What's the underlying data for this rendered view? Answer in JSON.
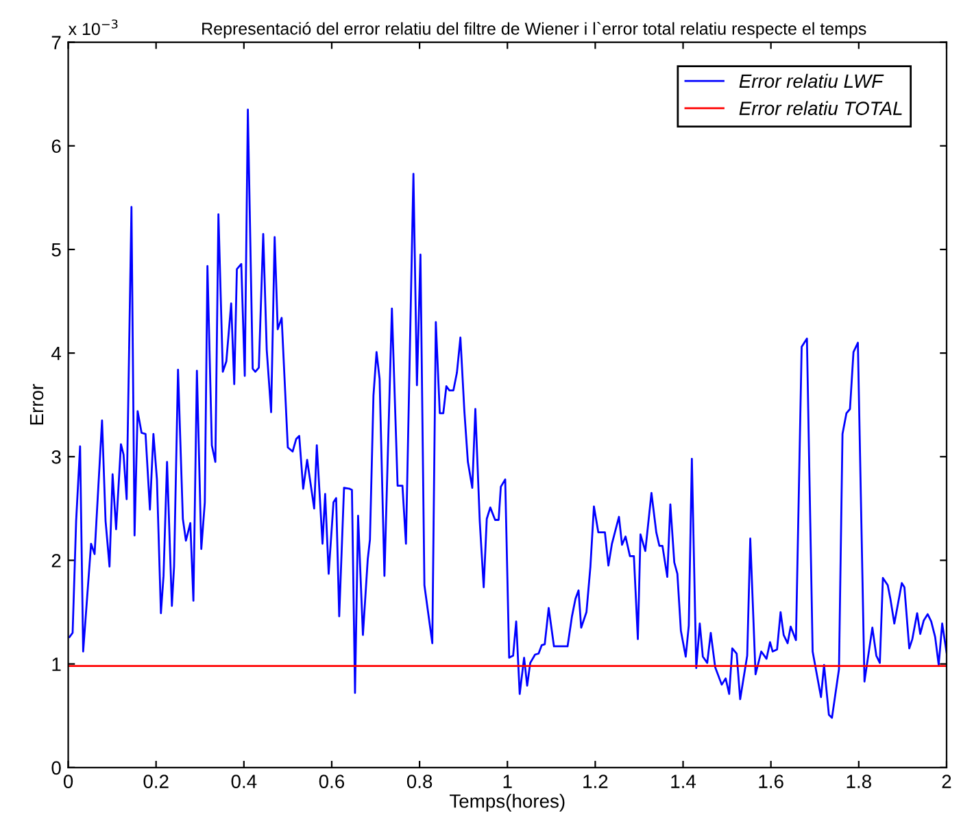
{
  "chart_data": {
    "type": "line",
    "title": "Representació del error relatiu del filtre de Wiener i l`error total relatiu respecte el temps",
    "xlabel": "Temps(hores)",
    "ylabel": "Error",
    "annotations": [
      "x 10$^{−3}$"
    ],
    "xlim": [
      0,
      2
    ],
    "xticks": [
      0,
      0.2,
      0.4,
      0.6,
      0.8,
      1,
      1.2,
      1.4,
      1.6,
      1.8,
      2
    ],
    "ylim": [
      0,
      7
    ],
    "yticks": [
      0,
      1,
      2,
      3,
      4,
      5,
      6,
      7
    ],
    "grid": false,
    "legend": "top right",
    "series": [
      {
        "name": "Error relatiu LWF",
        "color": "#0000ff",
        "x": [
          0.003,
          0.01,
          0.018,
          0.027,
          0.034,
          0.052,
          0.06,
          0.077,
          0.085,
          0.094,
          0.101,
          0.109,
          0.12,
          0.126,
          0.133,
          0.144,
          0.151,
          0.158,
          0.167,
          0.176,
          0.186,
          0.194,
          0.202,
          0.211,
          0.217,
          0.225,
          0.236,
          0.241,
          0.25,
          0.261,
          0.268,
          0.278,
          0.285,
          0.293,
          0.303,
          0.311,
          0.317,
          0.327,
          0.335,
          0.342,
          0.352,
          0.36,
          0.371,
          0.378,
          0.384,
          0.394,
          0.402,
          0.409,
          0.42,
          0.426,
          0.434,
          0.444,
          0.452,
          0.462,
          0.47,
          0.477,
          0.486,
          0.5,
          0.511,
          0.519,
          0.526,
          0.535,
          0.544,
          0.56,
          0.566,
          0.579,
          0.585,
          0.593,
          0.604,
          0.61,
          0.617,
          0.628,
          0.641,
          0.646,
          0.653,
          0.66,
          0.671,
          0.682,
          0.687,
          0.695,
          0.702,
          0.709,
          0.72,
          0.737,
          0.75,
          0.761,
          0.769,
          0.786,
          0.794,
          0.802,
          0.811,
          0.829,
          0.837,
          0.846,
          0.854,
          0.861,
          0.868,
          0.877,
          0.885,
          0.893,
          0.902,
          0.91,
          0.92,
          0.927,
          0.937,
          0.946,
          0.953,
          0.961,
          0.972,
          0.98,
          0.985,
          0.995,
          1.004,
          1.013,
          1.02,
          1.028,
          1.038,
          1.045,
          1.052,
          1.063,
          1.071,
          1.078,
          1.085,
          1.094,
          1.106,
          1.137,
          1.147,
          1.155,
          1.162,
          1.168,
          1.18,
          1.189,
          1.197,
          1.207,
          1.222,
          1.23,
          1.238,
          1.254,
          1.261,
          1.269,
          1.279,
          1.288,
          1.297,
          1.303,
          1.314,
          1.328,
          1.339,
          1.346,
          1.353,
          1.364,
          1.371,
          1.38,
          1.387,
          1.395,
          1.406,
          1.413,
          1.42,
          1.43,
          1.438,
          1.445,
          1.455,
          1.463,
          1.473,
          1.488,
          1.497,
          1.505,
          1.512,
          1.522,
          1.53,
          1.546,
          1.553,
          1.565,
          1.578,
          1.59,
          1.598,
          1.604,
          1.614,
          1.622,
          1.629,
          1.638,
          1.645,
          1.657,
          1.67,
          1.682,
          1.695,
          1.714,
          1.721,
          1.732,
          1.739,
          1.755,
          1.763,
          1.772,
          1.78,
          1.788,
          1.798,
          1.813,
          1.831,
          1.84,
          1.848,
          1.855,
          1.866,
          1.872,
          1.881,
          1.898,
          1.904,
          1.915,
          1.922,
          1.933,
          1.94,
          1.948,
          1.957,
          1.965,
          1.974,
          1.982,
          1.99,
          2.0
        ],
        "values": [
          1.26,
          1.3,
          2.38,
          3.1,
          1.12,
          2.16,
          2.06,
          3.35,
          2.38,
          1.94,
          2.83,
          2.3,
          3.12,
          3.02,
          2.59,
          5.41,
          2.24,
          3.44,
          3.23,
          3.22,
          2.49,
          3.22,
          2.78,
          1.49,
          1.85,
          2.95,
          1.56,
          1.94,
          3.84,
          2.4,
          2.19,
          2.36,
          1.61,
          3.83,
          2.11,
          2.56,
          4.84,
          3.11,
          2.95,
          5.34,
          3.82,
          3.92,
          4.48,
          3.7,
          4.81,
          4.86,
          3.78,
          6.35,
          3.85,
          3.82,
          3.86,
          5.15,
          4.03,
          3.43,
          5.12,
          4.23,
          4.34,
          3.09,
          3.05,
          3.17,
          3.2,
          2.69,
          2.97,
          2.5,
          3.11,
          2.16,
          2.64,
          1.87,
          2.56,
          2.6,
          1.46,
          2.7,
          2.69,
          2.68,
          0.72,
          2.43,
          1.28,
          2.01,
          2.2,
          3.59,
          4.01,
          3.75,
          1.85,
          4.43,
          2.72,
          2.72,
          2.16,
          5.73,
          3.69,
          4.95,
          1.76,
          1.2,
          4.3,
          3.42,
          3.42,
          3.68,
          3.64,
          3.64,
          3.81,
          4.15,
          3.44,
          2.95,
          2.7,
          3.46,
          2.38,
          1.74,
          2.4,
          2.51,
          2.39,
          2.39,
          2.71,
          2.78,
          1.06,
          1.08,
          1.41,
          0.71,
          1.06,
          0.79,
          1.01,
          1.09,
          1.1,
          1.18,
          1.19,
          1.54,
          1.17,
          1.17,
          1.46,
          1.63,
          1.71,
          1.35,
          1.5,
          1.94,
          2.52,
          2.27,
          2.27,
          1.95,
          2.16,
          2.42,
          2.15,
          2.23,
          2.04,
          2.04,
          1.24,
          2.25,
          2.09,
          2.65,
          2.27,
          2.14,
          2.14,
          1.84,
          2.54,
          1.98,
          1.87,
          1.32,
          1.07,
          1.37,
          2.98,
          0.96,
          1.39,
          1.07,
          1.01,
          1.3,
          0.97,
          0.8,
          0.86,
          0.71,
          1.15,
          1.1,
          0.66,
          1.08,
          2.21,
          0.9,
          1.12,
          1.05,
          1.21,
          1.12,
          1.14,
          1.5,
          1.28,
          1.2,
          1.36,
          1.23,
          4.06,
          4.14,
          1.12,
          0.68,
          0.99,
          0.51,
          0.48,
          0.95,
          3.22,
          3.42,
          3.46,
          4.01,
          4.1,
          0.83,
          1.35,
          1.08,
          1.01,
          1.83,
          1.76,
          1.63,
          1.39,
          1.78,
          1.74,
          1.15,
          1.24,
          1.49,
          1.29,
          1.42,
          1.48,
          1.41,
          1.26,
          0.99,
          1.39,
          1.11
        ]
      },
      {
        "name": "Error relatiu TOTAL",
        "color": "#ff0000",
        "x": [
          0,
          2
        ],
        "values": [
          0.98,
          0.98
        ]
      }
    ]
  }
}
